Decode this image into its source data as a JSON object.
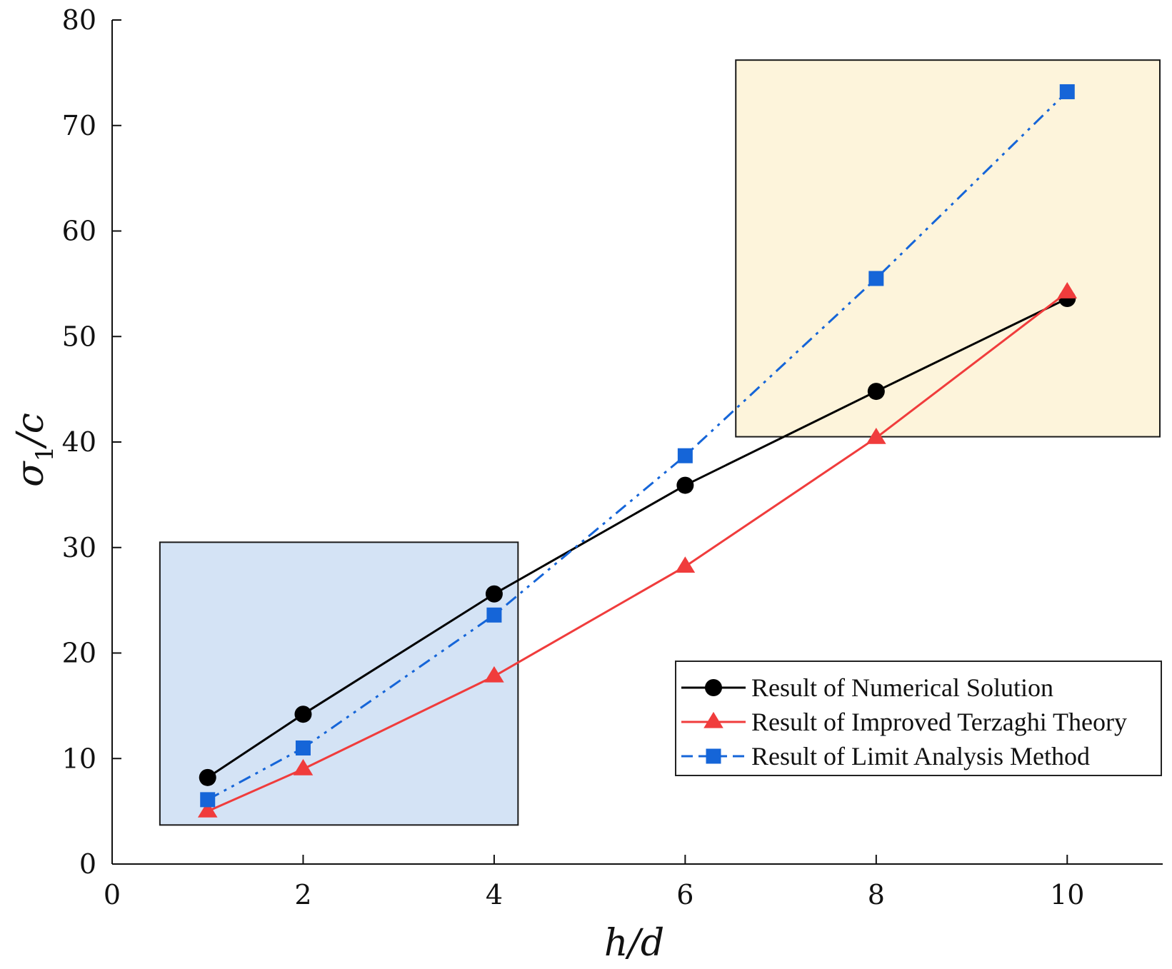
{
  "chart_data": {
    "type": "line",
    "title": "",
    "xlabel": "h/d",
    "ylabel": "σ1/c",
    "ylabel_parts": {
      "main": "σ",
      "sub": "1",
      "tail": "/c"
    },
    "xlim": [
      0,
      11
    ],
    "ylim": [
      0,
      80
    ],
    "xticks": [
      0,
      2,
      4,
      6,
      8,
      10
    ],
    "yticks": [
      0,
      10,
      20,
      30,
      40,
      50,
      60,
      70,
      80
    ],
    "x": [
      1,
      2,
      4,
      6,
      8,
      10
    ],
    "series": [
      {
        "name": "Result of Numerical Solution",
        "marker": "circle",
        "line": "solid",
        "color": "#000000",
        "values": [
          8.2,
          14.2,
          25.6,
          35.9,
          44.8,
          53.6
        ]
      },
      {
        "name": "Result of Improved Terzaghi Theory",
        "marker": "triangle",
        "line": "solid",
        "color": "#f03c3c",
        "values": [
          5.0,
          9.0,
          17.8,
          28.2,
          40.4,
          54.2
        ]
      },
      {
        "name": "Result of Limit Analysis Method",
        "marker": "square",
        "line": "dash-dot-dot",
        "color": "#1565d8",
        "values": [
          6.1,
          11.0,
          23.6,
          38.7,
          55.5,
          73.2
        ]
      }
    ],
    "highlight_regions": [
      {
        "name": "low",
        "x": [
          0.5,
          4.25
        ],
        "y": [
          3.7,
          30.5
        ],
        "fill": "#a9c8ec",
        "opacity": 0.5
      },
      {
        "name": "high",
        "x": [
          6.53,
          10.97
        ],
        "y": [
          40.5,
          76.2
        ],
        "fill": "#fbe3a4",
        "opacity": 0.4
      }
    ],
    "legend_position": "lower-right"
  }
}
